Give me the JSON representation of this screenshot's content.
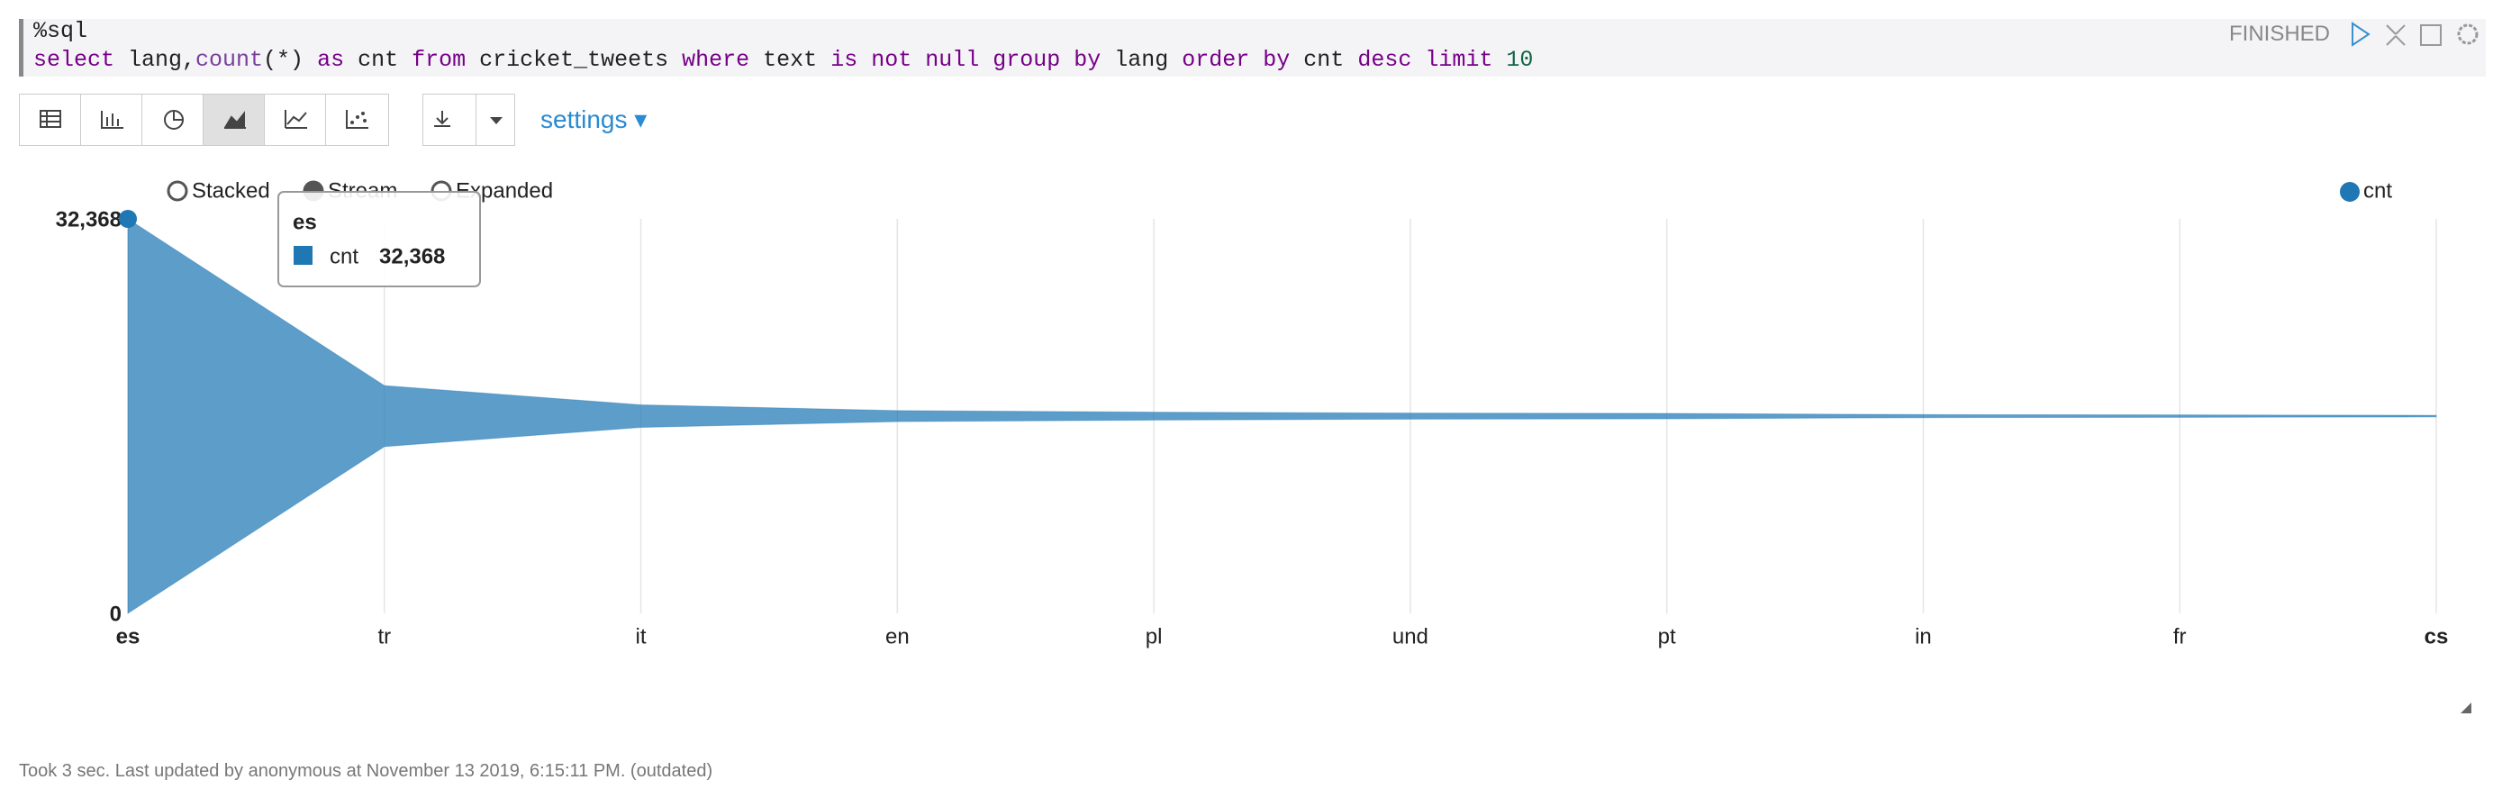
{
  "editor": {
    "interpreter": "%sql",
    "query": [
      {
        "text": "select",
        "color": "#770088"
      },
      {
        "text": " lang,",
        "color": "#222222"
      },
      {
        "text": "count",
        "color": "#7a3e9d"
      },
      {
        "text": "(*) ",
        "color": "#222222"
      },
      {
        "text": "as",
        "color": "#770088"
      },
      {
        "text": " cnt ",
        "color": "#222222"
      },
      {
        "text": "from",
        "color": "#770088"
      },
      {
        "text": " cricket_tweets ",
        "color": "#222222"
      },
      {
        "text": "where",
        "color": "#770088"
      },
      {
        "text": " text ",
        "color": "#222222"
      },
      {
        "text": "is not null group by",
        "color": "#770088"
      },
      {
        "text": " lang ",
        "color": "#222222"
      },
      {
        "text": "order by",
        "color": "#770088"
      },
      {
        "text": " cnt ",
        "color": "#222222"
      },
      {
        "text": "desc limit",
        "color": "#770088"
      },
      {
        "text": " ",
        "color": "#222222"
      },
      {
        "text": "10",
        "color": "#116644"
      }
    ],
    "status": "FINISHED"
  },
  "toolbar": {
    "settings": "settings"
  },
  "chart_options": [
    "Stacked",
    "Stream",
    "Expanded"
  ],
  "chart_data": {
    "type": "stream",
    "categories": [
      "es",
      "tr",
      "it",
      "en",
      "pl",
      "und",
      "pt",
      "in",
      "fr",
      "cs"
    ],
    "series": [
      {
        "name": "cnt",
        "color": "#1f77b4",
        "values": [
          32368,
          5000,
          1850,
          900,
          650,
          500,
          450,
          250,
          200,
          130
        ]
      }
    ],
    "ylim": [
      0,
      32368
    ],
    "yticks": [
      0,
      {
        "value": 32368,
        "label": "32,368"
      }
    ],
    "grid": true
  },
  "footer": "Took 3 sec. Last updated by anonymous at November 13 2019, 6:15:11 PM. (outdated)"
}
